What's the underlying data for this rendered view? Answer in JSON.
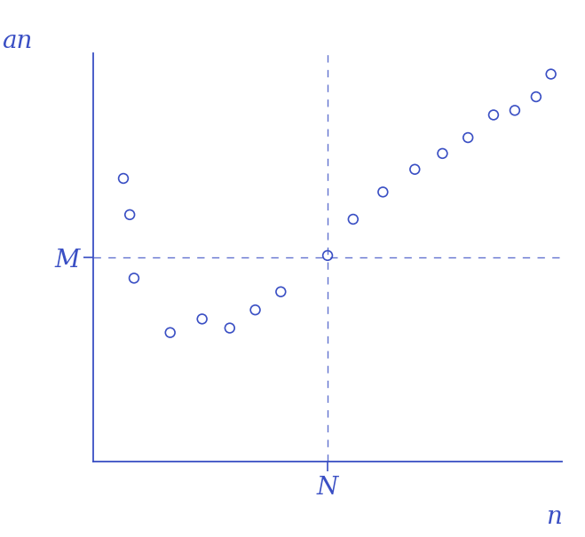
{
  "chart_data": {
    "type": "scatter",
    "x_label": "n",
    "y_label": "an",
    "x": [
      1.4,
      1.7,
      1.9,
      3.6,
      5.1,
      6.4,
      7.6,
      8.8,
      11.0,
      12.2,
      13.6,
      15.1,
      16.4,
      17.6,
      18.8,
      19.8,
      20.8,
      21.5
    ],
    "values": [
      12.5,
      10.9,
      8.1,
      5.7,
      6.3,
      5.9,
      6.7,
      7.5,
      9.1,
      10.7,
      11.9,
      12.9,
      13.6,
      14.3,
      15.3,
      15.5,
      16.1,
      17.1
    ],
    "color": "#3a4fc4",
    "marker": "circle",
    "xlim": [
      0,
      22
    ],
    "ylim": [
      0,
      18
    ],
    "xticks": [
      {
        "value": 11,
        "label": "N"
      }
    ],
    "yticks": [
      {
        "value": 9,
        "label": "M"
      }
    ],
    "grid": true
  }
}
